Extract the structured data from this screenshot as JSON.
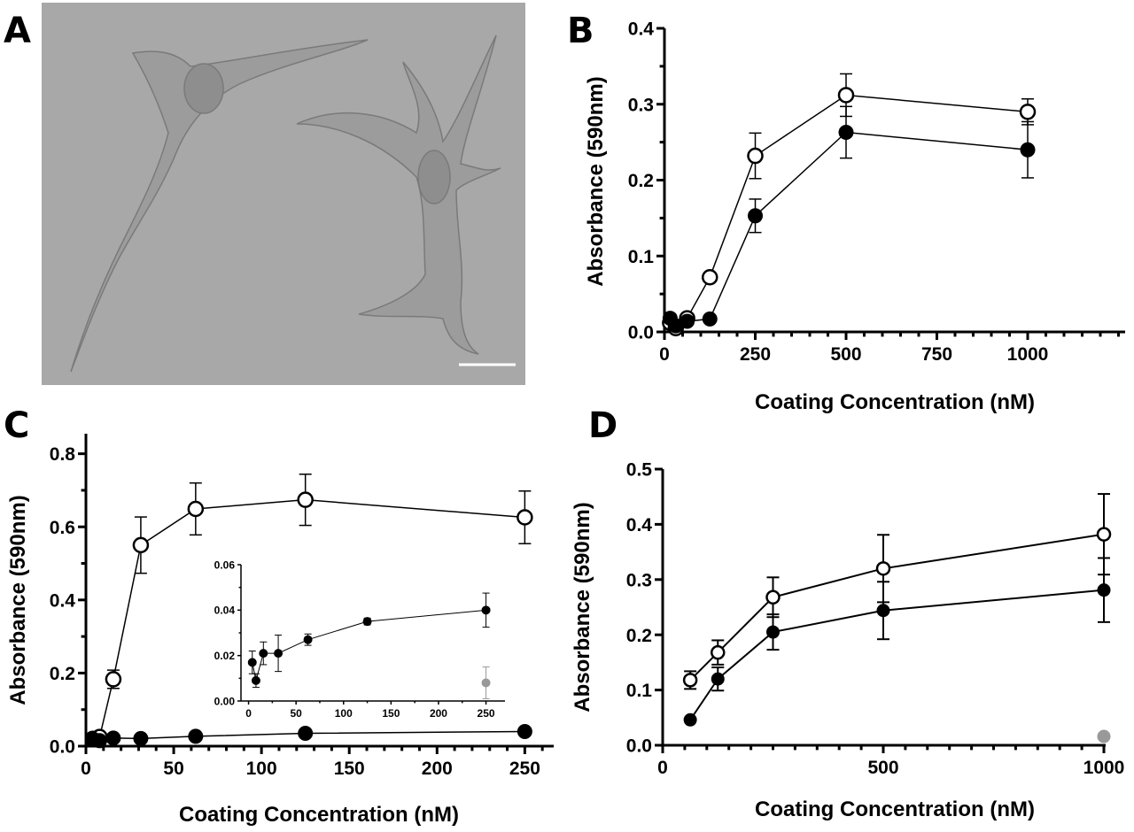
{
  "panel_labels": {
    "a": "A",
    "b": "B",
    "c": "C",
    "d": "D"
  },
  "micrograph": {
    "background": "#a8a8a8",
    "scale_bar_color": "#ffffff"
  },
  "colors": {
    "open": "#ffffff",
    "filled": "#000000",
    "control": "#999999",
    "line": "#000000"
  },
  "chart_data": [
    {
      "panel": "B",
      "type": "line",
      "xlabel": "Coating Concentration (nM)",
      "ylabel": "Absorbance (590nm)",
      "xlim": [
        0,
        1100
      ],
      "ylim": [
        0,
        0.4
      ],
      "xticks": [
        0,
        250,
        500,
        750,
        1000
      ],
      "yticks": [
        0.0,
        0.1,
        0.2,
        0.3,
        0.4
      ],
      "ytick_labels": [
        "0.0",
        "0.1",
        "0.2",
        "0.3",
        "0.4"
      ],
      "grid": false,
      "series": [
        {
          "marker": "open",
          "x": [
            15.6,
            31.25,
            62.5,
            125,
            250,
            500,
            1000
          ],
          "y": [
            0.012,
            0.005,
            0.018,
            0.072,
            0.232,
            0.312,
            0.29
          ],
          "err": [
            0,
            0,
            0.005,
            0,
            0.03,
            0.028,
            0.017
          ]
        },
        {
          "marker": "filled",
          "x": [
            15.6,
            31.25,
            62.5,
            125,
            250,
            500,
            1000
          ],
          "y": [
            0.018,
            0.008,
            0.014,
            0.017,
            0.153,
            0.263,
            0.24
          ],
          "err": [
            0,
            0,
            0.004,
            0,
            0.022,
            0.034,
            0.037
          ]
        }
      ]
    },
    {
      "panel": "C",
      "type": "line",
      "xlabel": "Coating Concentration (nM)",
      "ylabel": "Absorbance (590nm)",
      "xlim": [
        0,
        270
      ],
      "ylim": [
        0,
        0.85
      ],
      "xticks": [
        0,
        50,
        100,
        150,
        200,
        250
      ],
      "yticks": [
        0.0,
        0.2,
        0.4,
        0.6,
        0.8
      ],
      "ytick_labels": [
        "0.0",
        "0.2",
        "0.4",
        "0.6",
        "0.8"
      ],
      "grid": false,
      "series": [
        {
          "marker": "open",
          "x": [
            3.9,
            7.8,
            15.6,
            31.25,
            62.5,
            125,
            250
          ],
          "y": [
            0.02,
            0.025,
            0.183,
            0.55,
            0.649,
            0.674,
            0.626
          ],
          "err": [
            0,
            0,
            0.025,
            0.077,
            0.071,
            0.07,
            0.072
          ]
        },
        {
          "marker": "filled",
          "x": [
            3.9,
            7.8,
            15.6,
            31.25,
            62.5,
            125,
            250
          ],
          "y": [
            0.02,
            0.015,
            0.022,
            0.021,
            0.027,
            0.035,
            0.04
          ],
          "err": [
            0,
            0,
            0,
            0,
            0,
            0,
            0
          ]
        }
      ],
      "inset": {
        "type": "line",
        "xlim": [
          -8,
          270
        ],
        "ylim": [
          0,
          0.06
        ],
        "xticks": [
          0,
          50,
          100,
          150,
          200,
          250
        ],
        "yticks": [
          0.0,
          0.02,
          0.04,
          0.06
        ],
        "ytick_labels": [
          "0.00",
          "0.02",
          "0.04",
          "0.06"
        ],
        "series": [
          {
            "marker": "filled",
            "x": [
              3.9,
              7.8,
              15.6,
              31.25,
              62.5,
              125,
              250
            ],
            "y": [
              0.017,
              0.009,
              0.021,
              0.021,
              0.027,
              0.035,
              0.04
            ],
            "err": [
              0.005,
              0.003,
              0.005,
              0.008,
              0.0025,
              0.0015,
              0.0075
            ]
          },
          {
            "marker": "control",
            "x": [
              250
            ],
            "y": [
              0.008
            ],
            "err": [
              0.007
            ]
          }
        ]
      }
    },
    {
      "panel": "D",
      "type": "line",
      "xlabel": "Coating Concentration (nM)",
      "ylabel": "Absorbance (590nm)",
      "xlim": [
        0,
        1000
      ],
      "ylim": [
        0,
        0.5
      ],
      "xticks": [
        0,
        500,
        1000
      ],
      "yticks": [
        0.0,
        0.1,
        0.2,
        0.3,
        0.4,
        0.5
      ],
      "ytick_labels": [
        "0.0",
        "0.1",
        "0.2",
        "0.3",
        "0.4",
        "0.5"
      ],
      "grid": false,
      "series": [
        {
          "marker": "open",
          "x": [
            62.5,
            125,
            250,
            500,
            1000
          ],
          "y": [
            0.118,
            0.168,
            0.268,
            0.32,
            0.382
          ],
          "err": [
            0.016,
            0.022,
            0.036,
            0.061,
            0.073
          ]
        },
        {
          "marker": "filled",
          "x": [
            62.5,
            125,
            250,
            500,
            1000
          ],
          "y": [
            0.046,
            0.12,
            0.205,
            0.244,
            0.281
          ],
          "err": [
            0,
            0.021,
            0.032,
            0.052,
            0.058
          ]
        },
        {
          "marker": "control",
          "x": [
            1000
          ],
          "y": [
            0.016
          ],
          "err": [
            0
          ]
        }
      ]
    }
  ]
}
